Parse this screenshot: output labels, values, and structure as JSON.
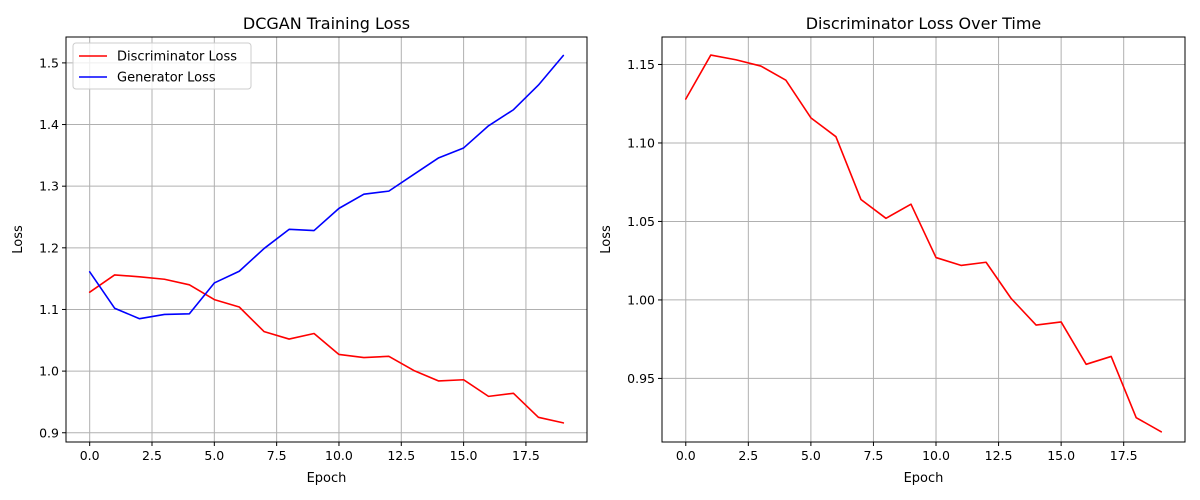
{
  "chart_data": [
    {
      "type": "line",
      "title": "DCGAN Training Loss",
      "xlabel": "Epoch",
      "ylabel": "Loss",
      "xlim": [
        -0.95,
        19.95
      ],
      "ylim": [
        0.885,
        1.542
      ],
      "xticks": [
        0,
        2.5,
        5,
        7.5,
        10,
        12.5,
        15,
        17.5
      ],
      "xtick_labels": [
        "0.0",
        "2.5",
        "5.0",
        "7.5",
        "10.0",
        "12.5",
        "15.0",
        "17.5"
      ],
      "yticks": [
        0.9,
        1.0,
        1.1,
        1.2,
        1.3,
        1.4,
        1.5
      ],
      "ytick_labels": [
        "0.9",
        "1.0",
        "1.1",
        "1.2",
        "1.3",
        "1.4",
        "1.5"
      ],
      "grid": true,
      "legend": "top-left",
      "x": [
        0,
        1,
        2,
        3,
        4,
        5,
        6,
        7,
        8,
        9,
        10,
        11,
        12,
        13,
        14,
        15,
        16,
        17,
        18,
        19
      ],
      "series": [
        {
          "name": "Discriminator Loss",
          "color": "#ff0000",
          "values": [
            1.128,
            1.156,
            1.153,
            1.149,
            1.14,
            1.116,
            1.104,
            1.064,
            1.052,
            1.061,
            1.027,
            1.022,
            1.024,
            1.001,
            0.984,
            0.986,
            0.959,
            0.964,
            0.925,
            0.916
          ]
        },
        {
          "name": "Generator Loss",
          "color": "#0000ff",
          "values": [
            1.161,
            1.102,
            1.085,
            1.092,
            1.093,
            1.143,
            1.162,
            1.199,
            1.23,
            1.228,
            1.264,
            1.287,
            1.292,
            1.319,
            1.346,
            1.362,
            1.398,
            1.424,
            1.464,
            1.512
          ]
        }
      ]
    },
    {
      "type": "line",
      "title": "Discriminator Loss Over Time",
      "xlabel": "Epoch",
      "ylabel": "Loss",
      "xlim": [
        -0.95,
        19.95
      ],
      "ylim": [
        0.9095,
        1.1675
      ],
      "xticks": [
        0,
        2.5,
        5,
        7.5,
        10,
        12.5,
        15,
        17.5
      ],
      "xtick_labels": [
        "0.0",
        "2.5",
        "5.0",
        "7.5",
        "10.0",
        "12.5",
        "15.0",
        "17.5"
      ],
      "yticks": [
        0.95,
        1.0,
        1.05,
        1.1,
        1.15
      ],
      "ytick_labels": [
        "0.95",
        "1.00",
        "1.05",
        "1.10",
        "1.15"
      ],
      "grid": true,
      "legend": "none",
      "x": [
        0,
        1,
        2,
        3,
        4,
        5,
        6,
        7,
        8,
        9,
        10,
        11,
        12,
        13,
        14,
        15,
        16,
        17,
        18,
        19
      ],
      "series": [
        {
          "color": "#ff0000",
          "values": [
            1.128,
            1.156,
            1.153,
            1.149,
            1.14,
            1.116,
            1.104,
            1.064,
            1.052,
            1.061,
            1.027,
            1.022,
            1.024,
            1.001,
            0.984,
            0.986,
            0.959,
            0.964,
            0.925,
            0.916
          ]
        }
      ]
    }
  ]
}
